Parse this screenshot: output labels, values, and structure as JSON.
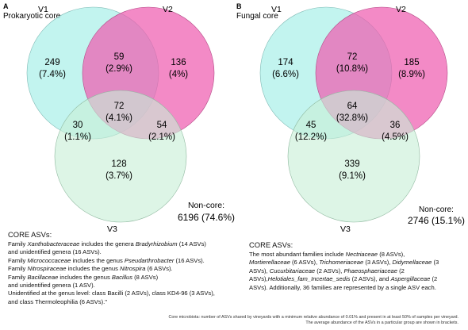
{
  "panelA": {
    "letter": "A",
    "title": "Prokaryotic core",
    "sets": [
      "V1",
      "V2",
      "V3"
    ],
    "regions": {
      "v1_only": {
        "n": "249",
        "p": "(7.4%)"
      },
      "v2_only": {
        "n": "136",
        "p": "(4%)"
      },
      "v1_v2": {
        "n": "59",
        "p": "(2.9%)"
      },
      "all": {
        "n": "72",
        "p": "(4.1%)"
      },
      "v1_v3": {
        "n": "30",
        "p": "(1.1%)"
      },
      "v2_v3": {
        "n": "54",
        "p": "(2.1%)"
      },
      "v3_only": {
        "n": "128",
        "p": "(3.7%)"
      }
    },
    "noncore_label": "Non-core:",
    "noncore_value": "6196 (74.6%)",
    "core_heading": "CORE ASVs:",
    "core_text": [
      {
        "pre": "Family ",
        "it": "Xanthobacteraceae",
        "mid": " includes the genera ",
        "it2": "Bradyrhizobium",
        "post": " (14 ASVs)"
      },
      {
        "pre": "and unidentified genera (16 ASVs)."
      },
      {
        "pre": "Family ",
        "it": "Micrococcaceae",
        "mid": " includes the genus ",
        "it2": "Pseudarthrobacter",
        "post": " (16 ASVs)."
      },
      {
        "pre": "Family ",
        "it": "Nitrospiraceae",
        "mid": " includes the genus ",
        "it2": "Nitrospira",
        "post": " (6 ASVs)."
      },
      {
        "pre": "Family ",
        "it": "Bacillaceae",
        "mid": " includes the genus ",
        "it2": "Bacillus",
        "post": " (8 ASVs)"
      },
      {
        "pre": "and unidentified genera (1 ASV)."
      },
      {
        "pre": "Unidentified at the genus level: class Bacilli (2 ASVs), class KD4-96 (3 ASVs),"
      },
      {
        "pre": "and class Thermoleophilia (6 ASVs).\""
      }
    ]
  },
  "panelB": {
    "letter": "B",
    "title": "Fungal core",
    "sets": [
      "V1",
      "V2",
      "V3"
    ],
    "regions": {
      "v1_only": {
        "n": "174",
        "p": "(6.6%)"
      },
      "v2_only": {
        "n": "185",
        "p": "(8.9%)"
      },
      "v1_v2": {
        "n": "72",
        "p": "(10.8%)"
      },
      "all": {
        "n": "64",
        "p": "(32.8%)"
      },
      "v1_v3": {
        "n": "45",
        "p": "(12.2%)"
      },
      "v2_v3": {
        "n": "36",
        "p": "(4.5%)"
      },
      "v3_only": {
        "n": "339",
        "p": "(9.1%)"
      }
    },
    "noncore_label": "Non-core:",
    "noncore_value": "2746 (15.1%)",
    "core_heading": "CORE ASVs:",
    "core_text": [
      {
        "pre": "The most abundant families include ",
        "it": "Nectriaceae",
        "post": " (8 ASVs),"
      },
      {
        "pre": "",
        "it": "Mortierellaceae",
        "mid": " (6 ASVs), ",
        "it2": "Trichomeriaceae",
        "mid2": " (3 ASVs), ",
        "it3": "Didymellaceae",
        "post": " (3"
      },
      {
        "pre": "ASVs), ",
        "it": "Cucurbitariaceae",
        "mid": " (2 ASVs), ",
        "it2": "Phaeosphaeriaceae",
        "post": " (2"
      },
      {
        "pre": "ASVs),",
        "it": "Helotiales_fam_Incertae_sedis",
        "mid": " (2 ASVs), and ",
        "it2": "Aspergillaceae",
        "post": " (2"
      },
      {
        "pre": "ASVs). Additionally, 36 families are represented by a single ASV each."
      }
    ]
  },
  "footnote": [
    "Core microbiota: number of ASVs shared by vineyards with a minimum relative abundance of 0.01% and present in at least 50% of samples per vineyard.",
    "The average abundance of the ASVs in a particular group are shown in brackets."
  ],
  "colors": {
    "v1": "#aef0ea",
    "v2": "#ee5db0",
    "v3": "#c8efd6"
  }
}
